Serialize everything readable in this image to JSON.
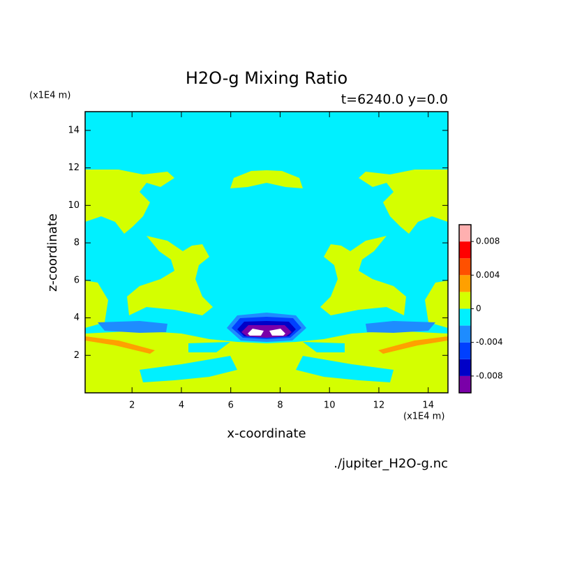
{
  "chart_data": {
    "type": "contour",
    "title": "H2O-g Mixing Ratio",
    "subtitle": "t=6240.0 y=0.0",
    "x_label": "x-coordinate",
    "y_label": "z-coordinate",
    "x_unit": "(x1E4 m)",
    "y_unit": "(x1E4 m)",
    "source": "./jupiter_H2O-g.nc",
    "xlim": [
      0.1,
      14.8
    ],
    "xticks": [
      2,
      4,
      6,
      8,
      10,
      12,
      14
    ],
    "ylim": [
      0,
      15
    ],
    "yticks": [
      2,
      4,
      6,
      8,
      10,
      12,
      14
    ],
    "colorbar": {
      "lim": [
        -0.01,
        0.01
      ],
      "ticks": [
        -0.008,
        -0.004,
        0,
        0.004,
        0.008
      ],
      "colors": [
        "#7a00a8",
        "#0000c8",
        "#0040ff",
        "#1e8cff",
        "#00f0ff",
        "#d4ff00",
        "#ffa000",
        "#ff5000",
        "#ff0000",
        "#ffb0b0"
      ]
    }
  }
}
